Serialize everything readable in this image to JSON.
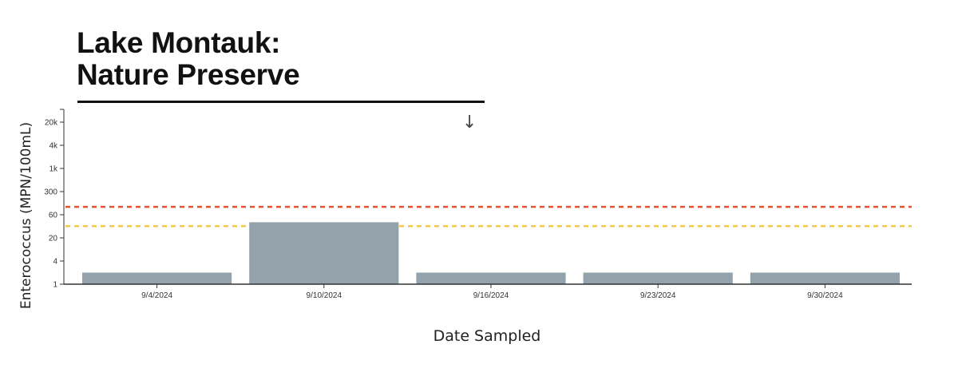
{
  "title_lines": [
    "Lake Montauk:",
    "Nature Preserve"
  ],
  "download_icon": "arrow-down-icon",
  "chart_data": {
    "type": "bar",
    "title": "Lake Montauk: Nature Preserve",
    "xlabel": "Date Sampled",
    "ylabel": "Enterococcus (MPN/100mL)",
    "categories": [
      "9/4/2024",
      "9/10/2024",
      "9/16/2024",
      "9/23/2024",
      "9/30/2024"
    ],
    "values": [
      2,
      42,
      2,
      2,
      2
    ],
    "y_scale": "log",
    "y_ticks": [
      1,
      4,
      20,
      60,
      300,
      1000,
      4000,
      20000
    ],
    "y_tick_labels": [
      "1",
      "4",
      "20",
      "60",
      "300",
      "1k",
      "4k",
      "20k"
    ],
    "reference_lines": [
      {
        "value": 104,
        "color": "#e8532f",
        "style": "dashed"
      },
      {
        "value": 35,
        "color": "#f2c94c",
        "style": "dashed"
      }
    ],
    "bar_color": "#94a3ab",
    "grid": false
  }
}
